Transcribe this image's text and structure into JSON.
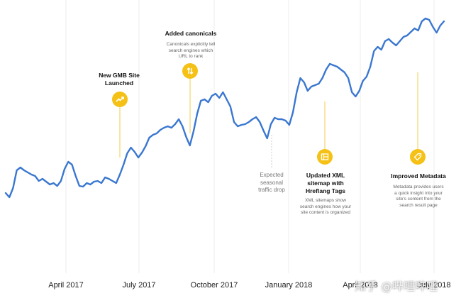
{
  "chart_data": {
    "type": "line",
    "title": "",
    "xlabel": "",
    "ylabel": "",
    "grid": "vertical lines at quarter ticks",
    "x_ticks": [
      "April 2017",
      "July 2017",
      "October 2017",
      "January 2018",
      "April 2018",
      "July 2018"
    ],
    "series": [
      {
        "color": "#3a77d0",
        "points": [
          [
            0,
            272
          ],
          [
            2,
            278
          ],
          [
            4,
            265
          ],
          [
            6,
            240
          ],
          [
            8,
            236
          ],
          [
            10,
            240
          ],
          [
            12,
            243
          ],
          [
            14,
            246
          ],
          [
            16,
            248
          ],
          [
            18,
            255
          ],
          [
            20,
            252
          ],
          [
            22,
            256
          ],
          [
            24,
            260
          ],
          [
            26,
            258
          ],
          [
            28,
            262
          ],
          [
            30,
            255
          ],
          [
            32,
            238
          ],
          [
            34,
            228
          ],
          [
            36,
            232
          ],
          [
            38,
            248
          ],
          [
            40,
            262
          ],
          [
            42,
            263
          ],
          [
            44,
            258
          ],
          [
            46,
            260
          ],
          [
            48,
            256
          ],
          [
            50,
            255
          ],
          [
            52,
            258
          ],
          [
            54,
            250
          ],
          [
            56,
            252
          ],
          [
            58,
            255
          ],
          [
            60,
            258
          ],
          [
            62,
            246
          ],
          [
            64,
            232
          ],
          [
            66,
            216
          ],
          [
            68,
            208
          ],
          [
            70,
            214
          ],
          [
            72,
            222
          ],
          [
            74,
            215
          ],
          [
            76,
            206
          ],
          [
            78,
            194
          ],
          [
            80,
            190
          ],
          [
            82,
            188
          ],
          [
            84,
            183
          ],
          [
            86,
            180
          ],
          [
            88,
            178
          ],
          [
            90,
            180
          ],
          [
            92,
            175
          ],
          [
            94,
            168
          ],
          [
            96,
            178
          ],
          [
            98,
            193
          ],
          [
            100,
            205
          ],
          [
            102,
            185
          ],
          [
            104,
            160
          ],
          [
            106,
            142
          ],
          [
            108,
            140
          ],
          [
            110,
            144
          ],
          [
            112,
            135
          ],
          [
            114,
            132
          ],
          [
            116,
            138
          ],
          [
            118,
            130
          ],
          [
            120,
            140
          ],
          [
            122,
            150
          ],
          [
            124,
            172
          ],
          [
            126,
            178
          ],
          [
            128,
            176
          ],
          [
            130,
            175
          ],
          [
            132,
            172
          ],
          [
            134,
            168
          ],
          [
            136,
            165
          ],
          [
            138,
            172
          ],
          [
            140,
            184
          ],
          [
            142,
            195
          ],
          [
            144,
            175
          ],
          [
            146,
            166
          ],
          [
            148,
            168
          ],
          [
            150,
            168
          ],
          [
            152,
            170
          ],
          [
            154,
            176
          ],
          [
            156,
            158
          ],
          [
            158,
            130
          ],
          [
            160,
            110
          ],
          [
            162,
            116
          ],
          [
            164,
            128
          ],
          [
            166,
            122
          ],
          [
            168,
            120
          ],
          [
            170,
            118
          ],
          [
            172,
            110
          ],
          [
            174,
            98
          ],
          [
            176,
            90
          ],
          [
            178,
            92
          ],
          [
            180,
            94
          ],
          [
            182,
            98
          ],
          [
            184,
            102
          ],
          [
            186,
            110
          ],
          [
            188,
            130
          ],
          [
            190,
            136
          ],
          [
            192,
            128
          ],
          [
            194,
            114
          ],
          [
            196,
            108
          ],
          [
            198,
            94
          ],
          [
            200,
            72
          ],
          [
            202,
            66
          ],
          [
            204,
            70
          ],
          [
            206,
            58
          ],
          [
            208,
            55
          ],
          [
            210,
            60
          ],
          [
            212,
            64
          ],
          [
            214,
            58
          ],
          [
            216,
            52
          ],
          [
            218,
            50
          ],
          [
            220,
            45
          ],
          [
            222,
            40
          ],
          [
            224,
            43
          ],
          [
            226,
            30
          ],
          [
            228,
            26
          ],
          [
            230,
            28
          ],
          [
            232,
            38
          ],
          [
            234,
            46
          ],
          [
            236,
            36
          ],
          [
            238,
            30
          ]
        ]
      }
    ],
    "annotations": [
      {
        "title": "New GMB Site\nLaunched",
        "description": "",
        "x": 62
      },
      {
        "title": "Added canonicals",
        "description": "Canonicals explicitly tell\nsearch engines which\nURL to rank",
        "x": 98
      },
      {
        "title": "",
        "description": "Expected\nseasonal\ntraffic drop",
        "x": 142
      },
      {
        "title": "Updated XML\nsitemap with\nHreflang Tags",
        "description": "XML sitemaps show\nsearch engines how your\nsite content is organized",
        "x": 174
      },
      {
        "title": "Improved Metadata",
        "description": "Metadata provides users\na quick insight into your\nsite's content from the\nsearch result page",
        "x": 224
      }
    ]
  },
  "watermark": "知乎 @哔哩哔哩",
  "accent_color": "#f5c116",
  "line_color": "#3a77d0"
}
